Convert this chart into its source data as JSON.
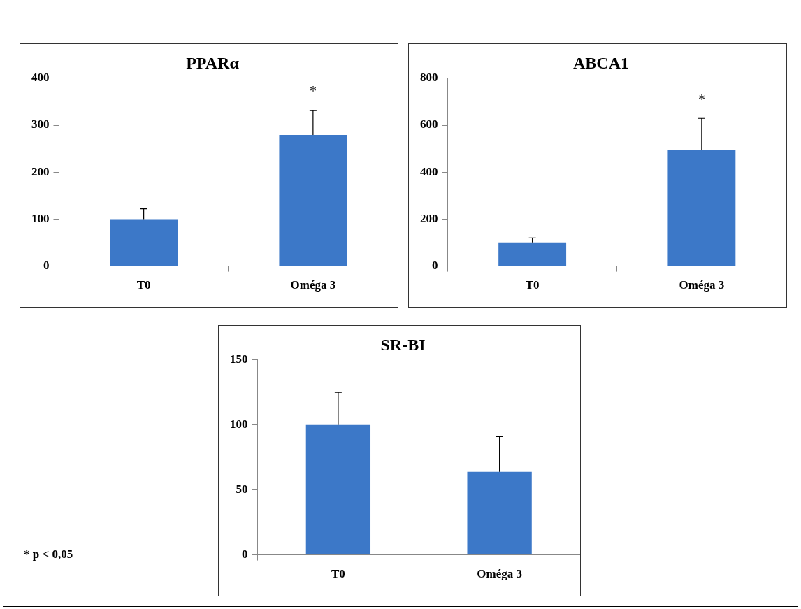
{
  "chart_data": [
    {
      "type": "bar",
      "title": "PPARα",
      "categories": [
        "T0",
        "Oméga 3"
      ],
      "values": [
        100,
        279
      ],
      "color": "#3c78c8",
      "errors": [
        [
          100,
          122
        ],
        [
          279,
          331
        ]
      ],
      "ylim": [
        0,
        400
      ],
      "yticks": [
        0,
        100,
        200,
        300,
        400
      ],
      "annotations": [
        {
          "text": "*",
          "x": "Oméga 3",
          "y": 331
        }
      ]
    },
    {
      "type": "bar",
      "title": "ABCA1",
      "categories": [
        "T0",
        "Oméga 3"
      ],
      "values": [
        101,
        494
      ],
      "color": "#3c78c8",
      "errors": [
        [
          101,
          120
        ],
        [
          494,
          629
        ]
      ],
      "ylim": [
        0,
        800
      ],
      "yticks": [
        0,
        200,
        400,
        600,
        800
      ],
      "annotations": [
        {
          "text": "*",
          "x": "Oméga 3",
          "y": 629
        }
      ]
    },
    {
      "type": "bar",
      "title": "SR-BI",
      "categories": [
        "T0",
        "Oméga 3"
      ],
      "values": [
        100,
        64
      ],
      "color": "#3c78c8",
      "errors": [
        [
          100,
          125
        ],
        [
          64,
          91
        ]
      ],
      "ylim": [
        0,
        150
      ],
      "yticks": [
        0,
        50,
        100,
        150
      ],
      "annotations": [
        "* p < 0,05"
      ]
    }
  ]
}
